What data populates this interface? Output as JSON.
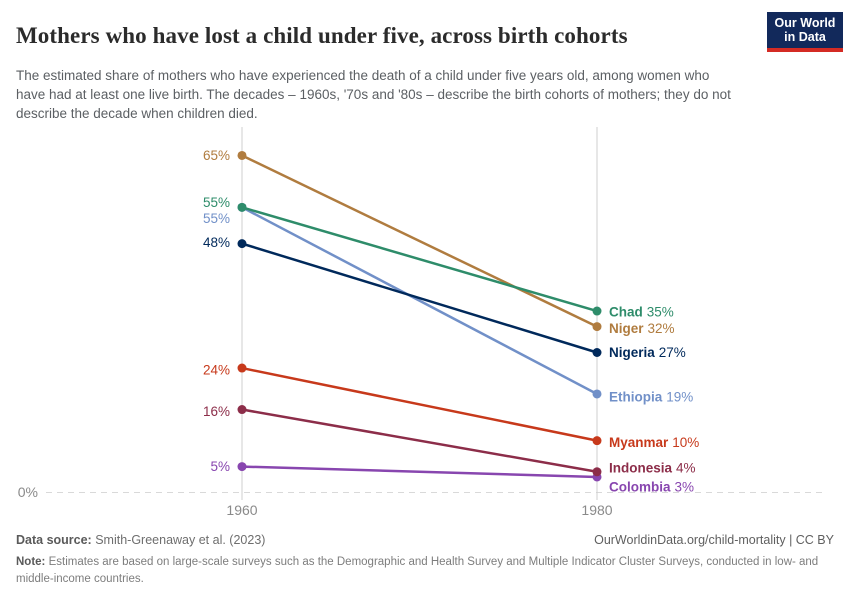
{
  "header": {
    "title": "Mothers who have lost a child under five, across birth cohorts",
    "subtitle": "The estimated share of mothers who have experienced the death of a child under five years old, among women who have had at least one live birth. The decades – 1960s, '70s and '80s – describe the birth cohorts of mothers; they do not describe the decade when children died.",
    "logo": {
      "line1": "Our World",
      "line2": "in Data",
      "bg_color": "#12295b",
      "accent_color": "#d42b24"
    }
  },
  "chart_data": {
    "type": "line",
    "subtype": "slope",
    "title": "Mothers who have lost a child under five, across birth cohorts",
    "x": [
      1960,
      1980
    ],
    "x_labels": [
      "1960",
      "1980"
    ],
    "zero_label": "0%",
    "ylabel": "",
    "ylim": [
      0,
      70
    ],
    "grid": "dashed zero baseline only",
    "legend_position": "right-of-line-ends",
    "series": [
      {
        "name": "Chad",
        "color": "#2E8C6A",
        "values": [
          55,
          35
        ],
        "left_label": "55%",
        "right_label": "35%",
        "left_dy": -5,
        "right_dy": 1
      },
      {
        "name": "Niger",
        "color": "#B07C3F",
        "values": [
          65,
          32
        ],
        "left_label": "65%",
        "right_label": "32%",
        "left_dy": 0,
        "right_dy": 2
      },
      {
        "name": "Nigeria",
        "color": "#00295B",
        "values": [
          48,
          27
        ],
        "left_label": "48%",
        "right_label": "27%",
        "left_dy": -1,
        "right_dy": 0
      },
      {
        "name": "Ethiopia",
        "color": "#7190C8",
        "values": [
          55,
          19
        ],
        "left_label": "55%",
        "right_label": "19%",
        "left_dy": 11,
        "right_dy": 3
      },
      {
        "name": "Myanmar",
        "color": "#C7391B",
        "values": [
          24,
          10
        ],
        "left_label": "24%",
        "right_label": "10%",
        "left_dy": 2,
        "right_dy": 2
      },
      {
        "name": "Indonesia",
        "color": "#8C2D49",
        "values": [
          16,
          4
        ],
        "left_label": "16%",
        "right_label": "4%",
        "left_dy": 2,
        "right_dy": -4
      },
      {
        "name": "Colombia",
        "color": "#8846AF",
        "values": [
          5,
          3
        ],
        "left_label": "5%",
        "right_label": "3%",
        "left_dy": 0,
        "right_dy": 10
      }
    ]
  },
  "footer": {
    "source_label": "Data source:",
    "source_value": "Smith-Greenaway et al. (2023)",
    "rights": "OurWorldinData.org/child-mortality | CC BY",
    "note_label": "Note:",
    "note_value": "Estimates are based on large-scale surveys such as the Demographic and Health Survey and Multiple Indicator Cluster Surveys, conducted in low- and middle-income countries."
  }
}
